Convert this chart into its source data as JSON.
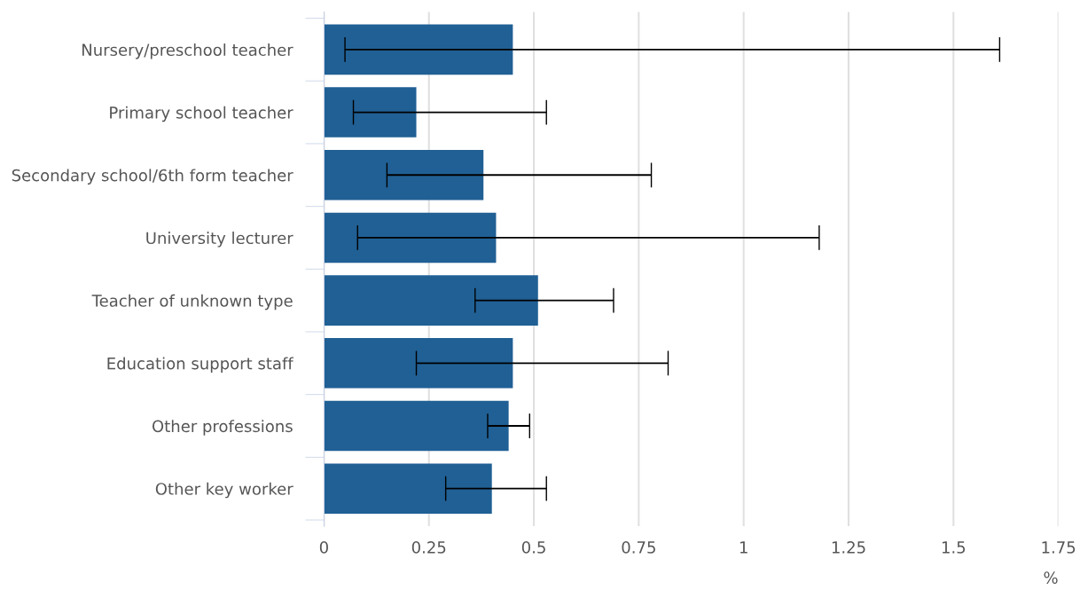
{
  "chart_data": {
    "type": "bar",
    "orientation": "horizontal",
    "xlabel": "%",
    "categories": [
      "Nursery/preschool teacher",
      "Primary school teacher",
      "Secondary school/6th form teacher",
      "University lecturer",
      "Teacher of unknown type",
      "Education support staff",
      "Other professions",
      "Other key worker"
    ],
    "values": [
      0.45,
      0.22,
      0.38,
      0.41,
      0.51,
      0.45,
      0.44,
      0.4
    ],
    "errors": [
      [
        0.05,
        1.61
      ],
      [
        0.07,
        0.53
      ],
      [
        0.15,
        0.78
      ],
      [
        0.08,
        1.18
      ],
      [
        0.36,
        0.69
      ],
      [
        0.22,
        0.82
      ],
      [
        0.39,
        0.49
      ],
      [
        0.29,
        0.53
      ]
    ],
    "color": "#206095",
    "xlim": [
      0,
      1.75
    ],
    "xticks": [
      0,
      0.25,
      0.5,
      0.75,
      1,
      1.25,
      1.5,
      1.75
    ],
    "grid": "x"
  }
}
